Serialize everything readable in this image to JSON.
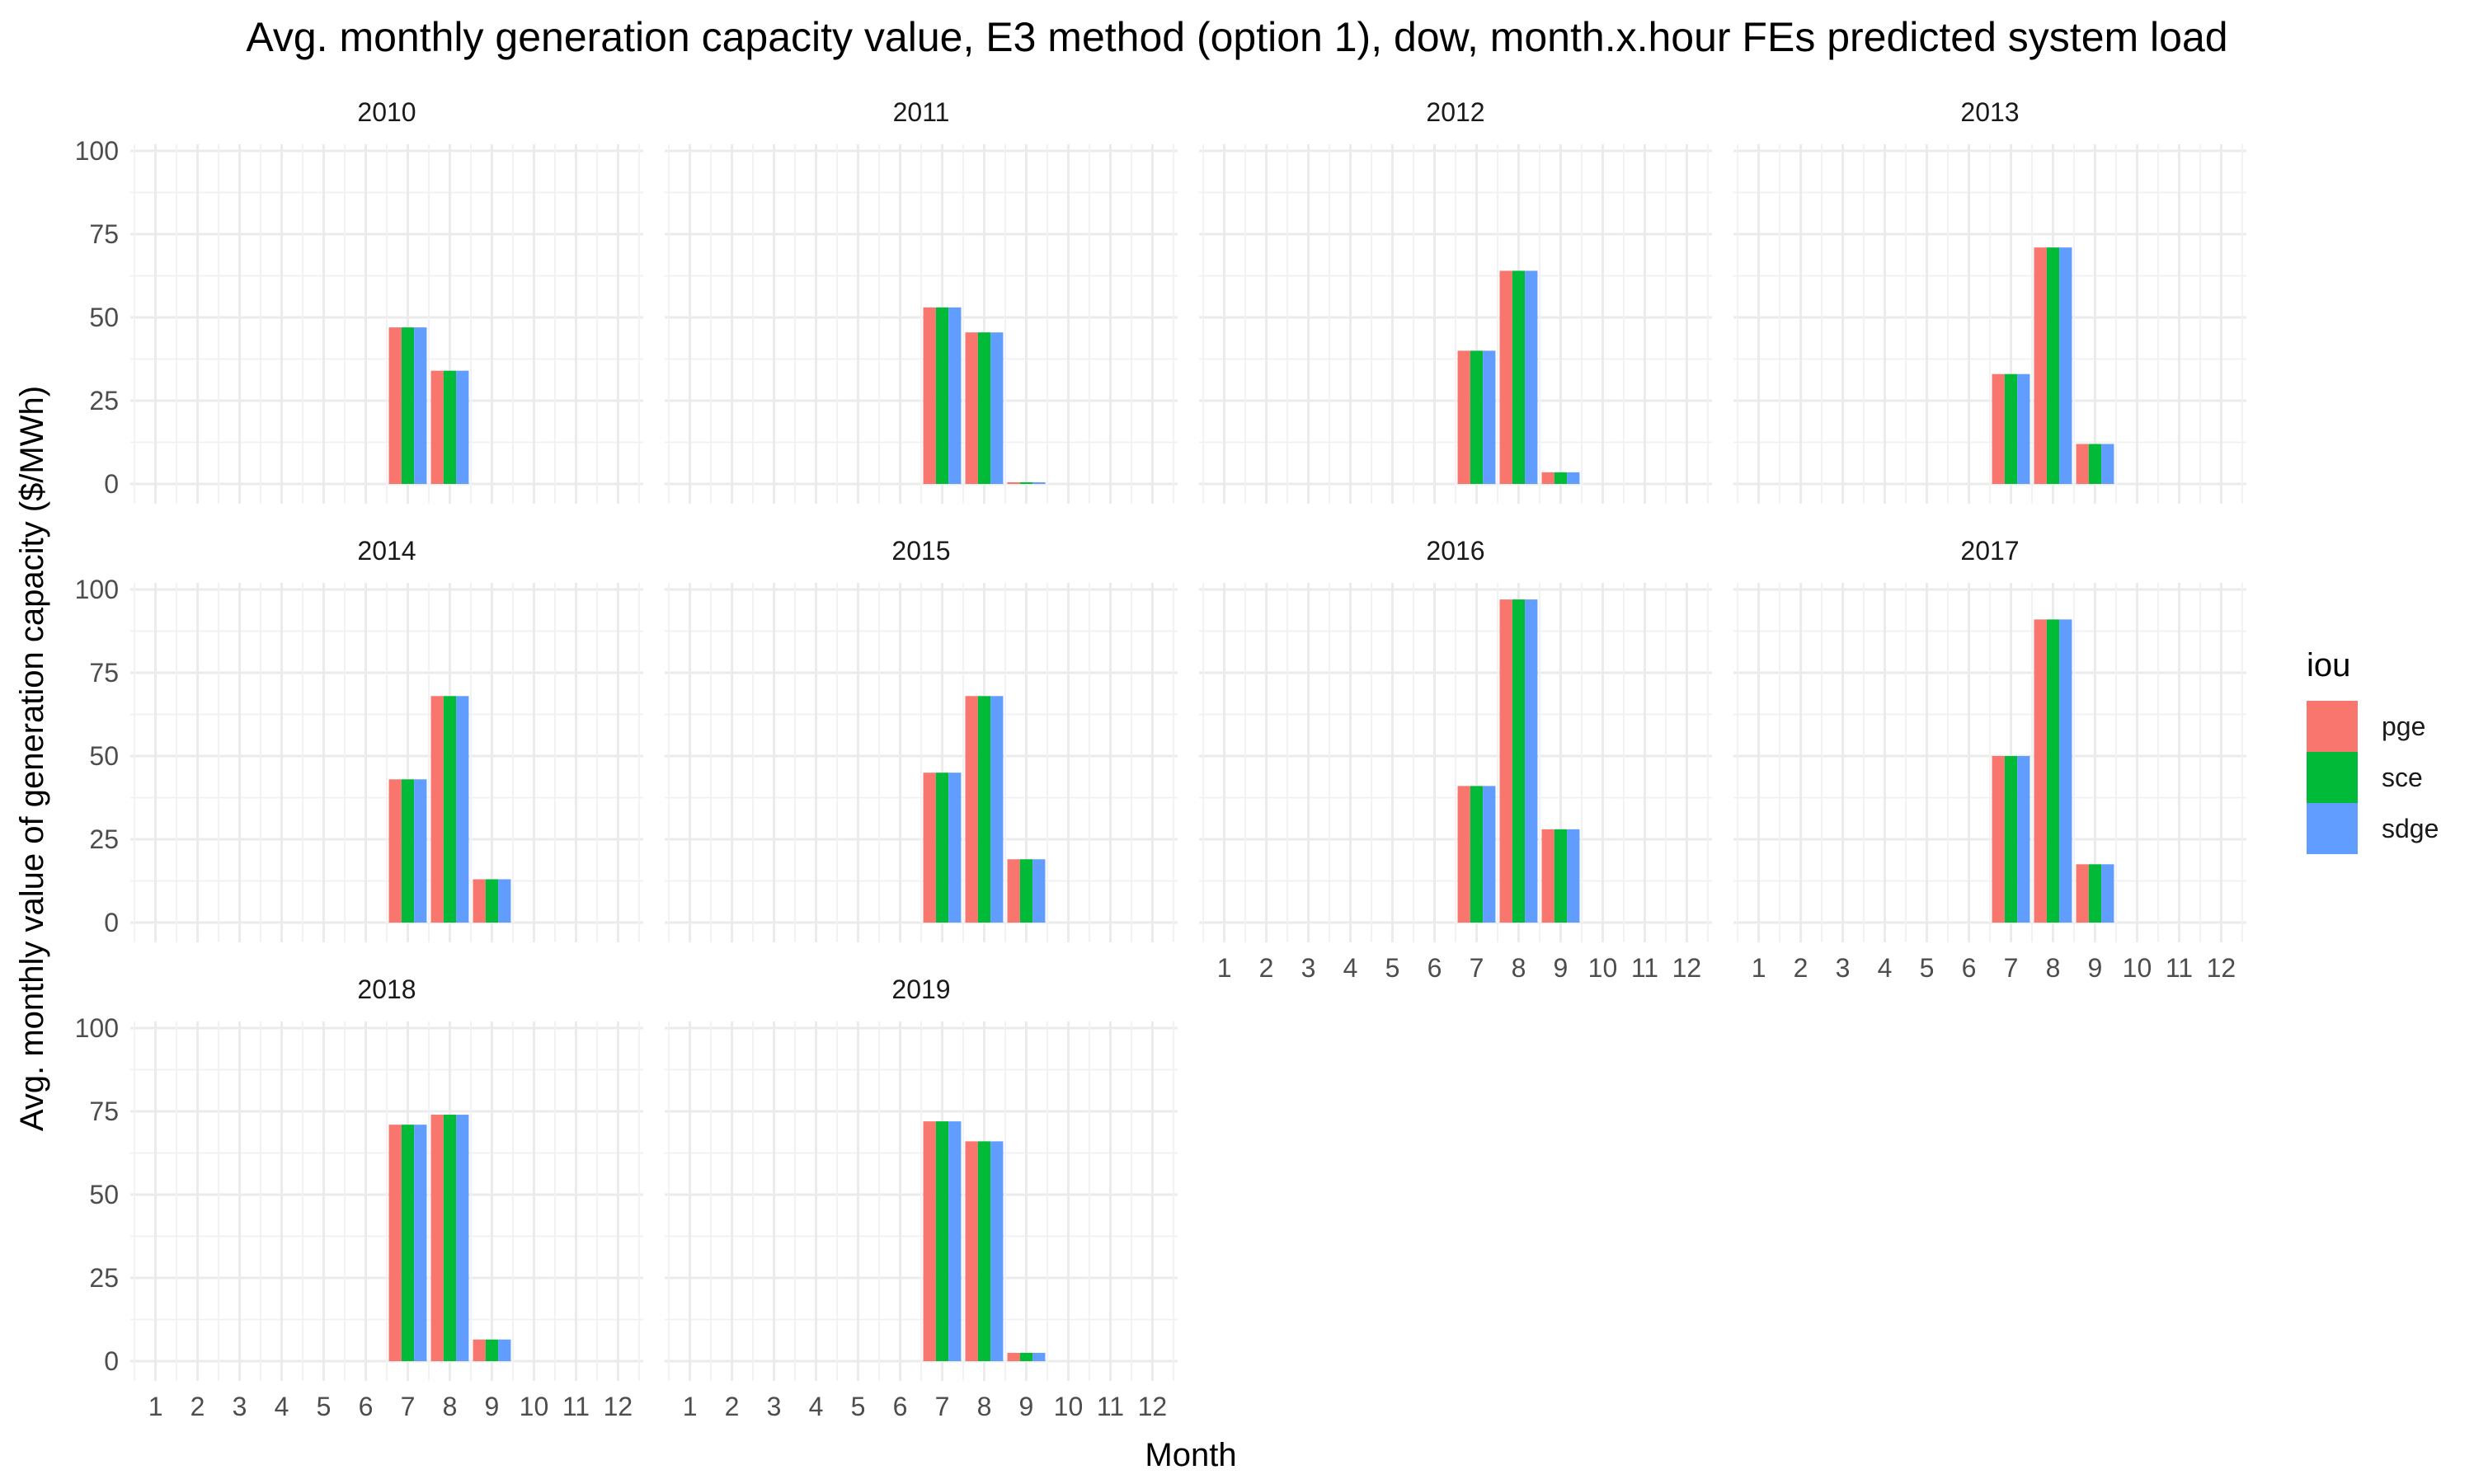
{
  "chart_data": {
    "type": "bar",
    "title": "Avg. monthly generation capacity value, E3 method (option 1), dow, month.x.hour FEs predicted system load",
    "xlabel": "Month",
    "ylabel": "Avg. monthly value of generation capacity ($/MWh)",
    "categories": [
      "1",
      "2",
      "3",
      "4",
      "5",
      "6",
      "7",
      "8",
      "9",
      "10",
      "11",
      "12"
    ],
    "ylim": [
      0,
      100
    ],
    "yticks": [
      "0",
      "25",
      "50",
      "75",
      "100"
    ],
    "grid": true,
    "legend": {
      "title": "iou",
      "position": "right",
      "entries": [
        {
          "name": "pge",
          "color": "#F8766D"
        },
        {
          "name": "sce",
          "color": "#00BA38"
        },
        {
          "name": "sdge",
          "color": "#619CFF"
        }
      ]
    },
    "series_names": [
      "pge",
      "sce",
      "sdge"
    ],
    "colors": [
      "#F8766D",
      "#00BA38",
      "#619CFF"
    ],
    "facets": [
      {
        "label": "2010",
        "values": {
          "7": 47,
          "8": 34
        }
      },
      {
        "label": "2011",
        "values": {
          "7": 53,
          "8": 45.5,
          "9": 0.5
        }
      },
      {
        "label": "2012",
        "values": {
          "7": 40,
          "8": 64,
          "9": 3.5
        }
      },
      {
        "label": "2013",
        "values": {
          "7": 33,
          "8": 71,
          "9": 12
        }
      },
      {
        "label": "2014",
        "values": {
          "7": 43,
          "8": 68,
          "9": 13
        }
      },
      {
        "label": "2015",
        "values": {
          "7": 45,
          "8": 68,
          "9": 19
        }
      },
      {
        "label": "2016",
        "values": {
          "7": 41,
          "8": 97,
          "9": 28
        }
      },
      {
        "label": "2017",
        "values": {
          "7": 50,
          "8": 91,
          "9": 17.5
        }
      },
      {
        "label": "2018",
        "values": {
          "7": 71,
          "8": 74,
          "9": 6.5
        }
      },
      {
        "label": "2019",
        "values": {
          "7": 72,
          "8": 66,
          "9": 2.5
        }
      }
    ]
  }
}
